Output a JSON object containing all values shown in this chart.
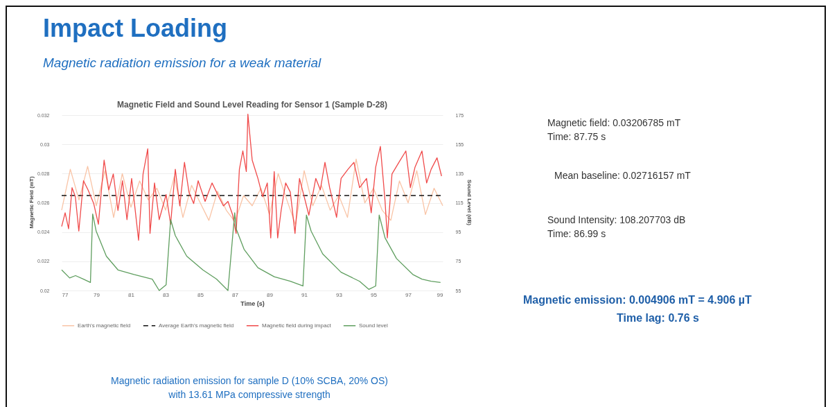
{
  "chart_data": {
    "type": "line",
    "title": "Magnetic Field and Sound Level Reading for Sensor 1 (Sample D-28)",
    "xlabel": "Time (s)",
    "ylabel": "Magnetic Field (mT)",
    "y2label": "Sound Level (dB)",
    "xlim": [
      77,
      99
    ],
    "xticks": [
      77,
      79,
      81,
      83,
      85,
      87,
      89,
      91,
      93,
      95,
      97,
      99
    ],
    "ylim": [
      0.02,
      0.0321
    ],
    "yticks": [
      0.02,
      0.022,
      0.024,
      0.026,
      0.028,
      0.03,
      0.032
    ],
    "y2lim": [
      55,
      176
    ],
    "y2ticks": [
      55,
      75,
      95,
      115,
      135,
      155,
      175
    ],
    "grid": "y",
    "legend": "bottom",
    "series": [
      {
        "name": "Earth's magnetic field",
        "color": "#f9c4a6",
        "x": [
          77,
          77.5,
          78,
          78.5,
          79,
          79.5,
          80,
          80.5,
          81,
          81.5,
          82,
          82.5,
          83,
          83.5,
          84,
          84.5,
          85,
          85.5,
          86,
          86.5,
          87,
          87.5,
          88,
          88.5,
          89,
          89.5,
          90,
          90.5,
          91,
          91.5,
          92,
          92.5,
          93,
          93.5,
          94,
          94.5,
          95,
          95.5,
          96,
          96.5,
          97,
          97.5,
          98,
          98.5,
          99
        ],
        "values": [
          0.0255,
          0.0283,
          0.0262,
          0.0285,
          0.0258,
          0.0282,
          0.025,
          0.028,
          0.0257,
          0.0275,
          0.0262,
          0.027,
          0.0255,
          0.0278,
          0.025,
          0.0272,
          0.026,
          0.0248,
          0.0268,
          0.0255,
          0.0247,
          0.0265,
          0.0258,
          0.027,
          0.0252,
          0.028,
          0.0262,
          0.0245,
          0.0282,
          0.0258,
          0.0272,
          0.0255,
          0.0265,
          0.025,
          0.029,
          0.026,
          0.027,
          0.0255,
          0.0248,
          0.0275,
          0.026,
          0.0282,
          0.0252,
          0.027,
          0.0258
        ]
      },
      {
        "name": "Average Earth's magnetic field",
        "color": "#111111",
        "line_style": "dashed",
        "x": [
          77,
          99
        ],
        "values": [
          0.0265,
          0.0265
        ]
      },
      {
        "name": "Magnetic field during impact",
        "color": "#f04a4a",
        "x": [
          77,
          77.2,
          77.4,
          77.6,
          77.79,
          77.99,
          78.26,
          78.52,
          78.85,
          79.12,
          79.45,
          79.72,
          79.98,
          80.25,
          80.51,
          80.77,
          81.04,
          81.44,
          81.7,
          81.97,
          82.1,
          82.36,
          82.63,
          83.03,
          83.29,
          83.56,
          83.82,
          84.09,
          84.35,
          84.62,
          84.88,
          85.28,
          85.68,
          86.07,
          86.34,
          86.6,
          86.87,
          87.07,
          87.26,
          87.46,
          87.66,
          87.75,
          88,
          88.33,
          88.6,
          88.87,
          89.07,
          89.27,
          89.47,
          89.67,
          89.93,
          90.2,
          90.47,
          90.73,
          91,
          91.27,
          91.67,
          91.93,
          92.2,
          92.47,
          92.87,
          93.13,
          93.53,
          93.87,
          94.2,
          94.6,
          94.87,
          95.13,
          95.4,
          95.67,
          95.8,
          96.07,
          96.47,
          96.87,
          97.13,
          97.4,
          97.8,
          98.07,
          98.33,
          98.67,
          98.93
        ],
        "values": [
          0.02438,
          0.02532,
          0.02423,
          0.02704,
          0.02642,
          0.02407,
          0.02751,
          0.02689,
          0.02595,
          0.02454,
          0.02892,
          0.02689,
          0.02798,
          0.02548,
          0.02751,
          0.02485,
          0.02767,
          0.02344,
          0.02798,
          0.0297,
          0.02391,
          0.02736,
          0.02485,
          0.02657,
          0.02454,
          0.0283,
          0.02579,
          0.02877,
          0.02673,
          0.02595,
          0.02751,
          0.0261,
          0.02736,
          0.02642,
          0.02579,
          0.0261,
          0.02517,
          0.02391,
          0.0283,
          0.02955,
          0.02814,
          0.03207,
          0.02892,
          0.02767,
          0.02642,
          0.02736,
          0.0236,
          0.02814,
          0.0236,
          0.02548,
          0.02736,
          0.02673,
          0.02391,
          0.02767,
          0.02642,
          0.02516,
          0.02767,
          0.02689,
          0.02877,
          0.02704,
          0.02501,
          0.02767,
          0.0283,
          0.02877,
          0.02704,
          0.02767,
          0.02532,
          0.02845,
          0.02986,
          0.0261,
          0.0236,
          0.02798,
          0.02877,
          0.02955,
          0.02704,
          0.02845,
          0.02955,
          0.02736,
          0.0283,
          0.02908,
          0.02783
        ]
      },
      {
        "name": "Sound level",
        "color": "#5f9e5f",
        "axis": "y2",
        "x": [
          77,
          77.46,
          77.8,
          78.26,
          78.66,
          78.79,
          78.99,
          79.58,
          80.25,
          81.17,
          82.23,
          82.63,
          83.03,
          83.29,
          83.56,
          84.22,
          85.15,
          85.94,
          86.6,
          86.99,
          87.07,
          87.53,
          88.33,
          89.27,
          90.2,
          90.93,
          91.13,
          91.4,
          92.07,
          93.13,
          94.2,
          94.73,
          95.13,
          95.33,
          95.67,
          96.33,
          97.27,
          97.8,
          98.33,
          98.87
        ],
        "values": [
          69.1,
          63.6,
          65.2,
          62.8,
          60.5,
          107.4,
          95.7,
          78.5,
          69.1,
          66,
          62.8,
          55,
          58.9,
          103.5,
          92.6,
          78.5,
          69.1,
          62.8,
          55,
          108.2,
          97.3,
          83.2,
          70.6,
          64.4,
          61.3,
          58.1,
          106.6,
          95.7,
          80,
          67.5,
          61.3,
          55.8,
          58.1,
          106.6,
          91,
          76.9,
          66,
          62.8,
          61.3,
          60.5
        ]
      }
    ],
    "annotations": [
      "Impact Loading",
      "Magnetic radiation emission for a weak material",
      "Magnetic field: 0.03206785 mT\nTime: 87.75 s",
      "Mean baseline: 0.02716157 mT",
      "Sound Intensity: 108.207703 dB\nTime: 86.99 s",
      "Magnetic emission: 0.004906 mT = 4.906 µT",
      "Time lag: 0.76 s",
      "Magnetic radiation emission for sample D (10% SCBA, 20% OS)\nwith 13.61 MPa compressive strength"
    ]
  }
}
